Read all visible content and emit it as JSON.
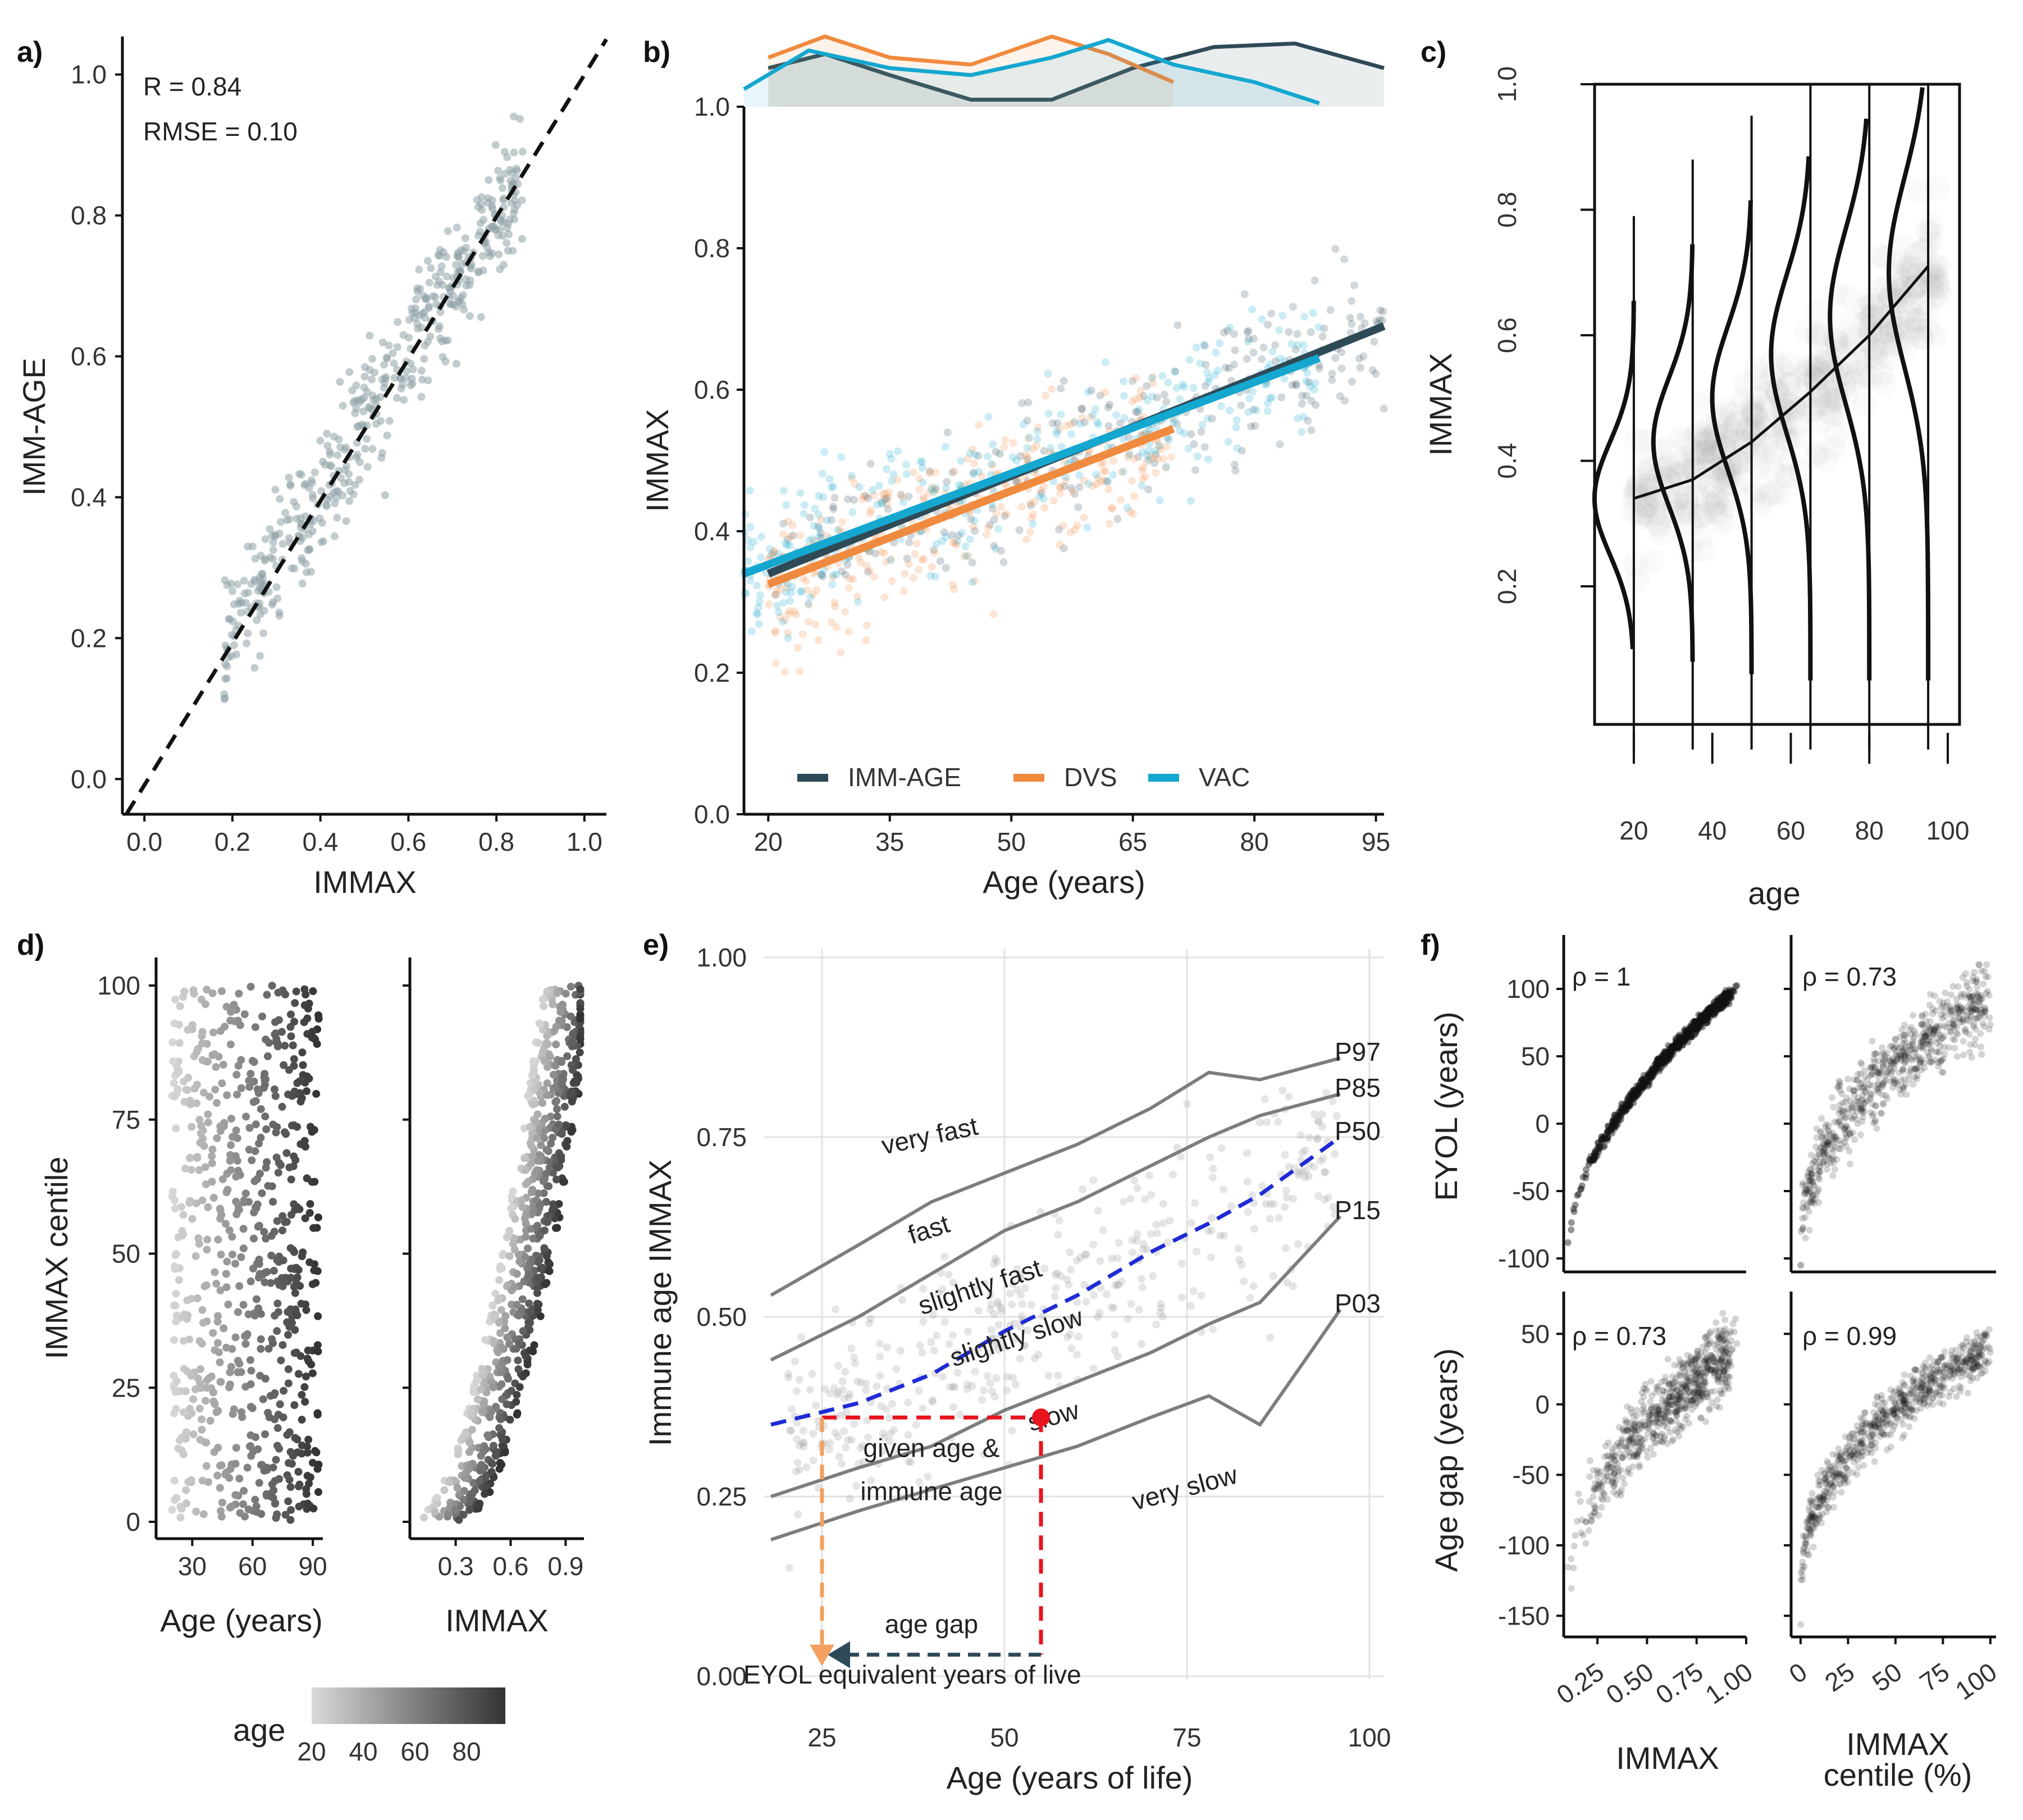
{
  "figure": {
    "panels": [
      "a)",
      "b)",
      "c)",
      "d)",
      "e)",
      "f)"
    ]
  },
  "colors": {
    "imm_age": "#2e4a57",
    "dvs": "#f08a3e",
    "vac": "#14a7cf",
    "red": "#e8141e",
    "orange": "#f3a060",
    "blue": "#1f2bd6",
    "grey": "#7d7d7d"
  },
  "chart_data": [
    {
      "panel": "a)",
      "type": "scatter",
      "xlabel": "IMMAX",
      "ylabel": "IMM-AGE",
      "xlim": [
        -0.05,
        1.05
      ],
      "ylim": [
        -0.05,
        1.05
      ],
      "xticks": [
        "0.0",
        "0.2",
        "0.4",
        "0.6",
        "0.8",
        "1.0"
      ],
      "yticks": [
        "0.0",
        "0.2",
        "0.4",
        "0.6",
        "0.8",
        "1.0"
      ],
      "annotations": [
        "R =  0.84",
        "RMSE = 0.10"
      ],
      "reference_line": "identity (dashed)",
      "n_points": 480
    },
    {
      "panel": "b)",
      "type": "scatter",
      "xlabel": "Age (years)",
      "ylabel": "IMMAX",
      "xlim": [
        17,
        96
      ],
      "ylim": [
        0,
        1.0
      ],
      "xticks": [
        "20",
        "35",
        "50",
        "65",
        "80",
        "95"
      ],
      "yticks": [
        "0.0",
        "0.2",
        "0.4",
        "0.6",
        "0.8",
        "1.0"
      ],
      "series": [
        {
          "name": "IMM-AGE",
          "fit_x": [
            20,
            96
          ],
          "fit_y": [
            0.34,
            0.69
          ],
          "age_range": [
            20,
            96
          ]
        },
        {
          "name": "DVS",
          "fit_x": [
            20,
            70
          ],
          "fit_y": [
            0.325,
            0.545
          ],
          "age_range": [
            20,
            70
          ]
        },
        {
          "name": "VAC",
          "fit_x": [
            17,
            88
          ],
          "fit_y": [
            0.34,
            0.645
          ],
          "age_range": [
            17,
            88
          ]
        }
      ],
      "density_top": "age distribution per cohort"
    },
    {
      "panel": "c)",
      "type": "heatmap",
      "xlabel": "age",
      "ylabel": "IMMAX",
      "xlim": [
        10,
        103
      ],
      "ylim": [
        -0.02,
        1.0
      ],
      "xticks": [
        "20",
        "40",
        "60",
        "80",
        "100"
      ],
      "yticks": [
        "0.2",
        "0.4",
        "0.6",
        "0.8",
        "1.0"
      ],
      "ridge_ages": [
        20,
        35,
        50,
        65,
        80,
        95
      ],
      "ridge_means": [
        0.34,
        0.43,
        0.5,
        0.57,
        0.63,
        0.7
      ],
      "trend_x": [
        20,
        35,
        50,
        65,
        80,
        95
      ],
      "trend_y": [
        0.34,
        0.37,
        0.43,
        0.51,
        0.6,
        0.71
      ]
    },
    {
      "panel": "d)",
      "type": "scatter",
      "ylabel": "IMMAX centile",
      "yticks": [
        "0",
        "25",
        "50",
        "75",
        "100"
      ],
      "subplots": [
        {
          "xlabel": "Age (years)",
          "xticks": [
            "30",
            "60",
            "90"
          ],
          "xlim": [
            12,
            95
          ]
        },
        {
          "xlabel": "IMMAX",
          "xticks": [
            "0.3",
            "0.6",
            "0.9"
          ],
          "xlim": [
            0.05,
            1.0
          ]
        }
      ],
      "legend": {
        "title": "age",
        "ticks": [
          "20",
          "40",
          "60",
          "80"
        ],
        "range": [
          20,
          95
        ]
      }
    },
    {
      "panel": "e)",
      "type": "line",
      "xlabel": "Age (years of life)",
      "ylabel": "Immune age IMMAX",
      "xlim": [
        17,
        102
      ],
      "ylim": [
        0,
        1.0
      ],
      "xticks": [
        "25",
        "50",
        "75",
        "100"
      ],
      "yticks": [
        "0.00",
        "0.25",
        "0.50",
        "0.75",
        "1.00"
      ],
      "x": [
        18,
        30,
        40,
        50,
        60,
        70,
        78,
        85,
        96
      ],
      "series": [
        {
          "name": "P97",
          "values": [
            0.53,
            0.6,
            0.66,
            0.7,
            0.74,
            0.79,
            0.84,
            0.83,
            0.86
          ]
        },
        {
          "name": "P85",
          "values": [
            0.44,
            0.5,
            0.56,
            0.62,
            0.66,
            0.71,
            0.75,
            0.78,
            0.81
          ]
        },
        {
          "name": "P50",
          "values": [
            0.35,
            0.38,
            0.42,
            0.48,
            0.53,
            0.59,
            0.63,
            0.67,
            0.75
          ]
        },
        {
          "name": "P15",
          "values": [
            0.25,
            0.29,
            0.32,
            0.37,
            0.41,
            0.45,
            0.49,
            0.52,
            0.64
          ]
        },
        {
          "name": "P03",
          "values": [
            0.19,
            0.23,
            0.26,
            0.29,
            0.32,
            0.36,
            0.39,
            0.35,
            0.51
          ]
        }
      ],
      "zone_labels": [
        "very fast",
        "fast",
        "slightly fast",
        "slightly slow",
        "slow",
        "very slow"
      ],
      "example": {
        "age": 55,
        "immune_age": 0.36,
        "eyol": 25
      },
      "annotations": {
        "given_line1": "given age &",
        "given_line2": "immune age",
        "gap": "age gap",
        "eyol": "EYOL equivalent years of live"
      }
    },
    {
      "panel": "f)",
      "type": "scatter",
      "subplots": [
        {
          "ylabel": "EYOL (years)",
          "xlabel": "IMMAX",
          "rho": "ρ = 1",
          "yticks": [
            "100",
            "50",
            "0",
            "-50",
            "-100"
          ]
        },
        {
          "ylabel": "EYOL (years)",
          "xlabel": "IMMAX centile (%)",
          "rho": "ρ = 0.73"
        },
        {
          "ylabel": "Age gap (years)",
          "xlabel": "IMMAX",
          "rho": "ρ = 0.73",
          "yticks": [
            "50",
            "0",
            "-50",
            "-100",
            "-150"
          ]
        },
        {
          "ylabel": "Age gap (years)",
          "xlabel": "IMMAX centile (%)",
          "rho": "ρ = 0.99"
        }
      ],
      "bottom_xticks_left": [
        "0.25",
        "0.50",
        "0.75",
        "1.00"
      ],
      "bottom_xticks_right": [
        "0",
        "25",
        "50",
        "75",
        "100"
      ],
      "xlabel_left": "IMMAX",
      "xlabel_right_line1": "IMMAX",
      "xlabel_right_line2": "centile (%)",
      "ylabel_top": "EYOL (years)",
      "ylabel_bottom": "Age gap (years)"
    }
  ]
}
